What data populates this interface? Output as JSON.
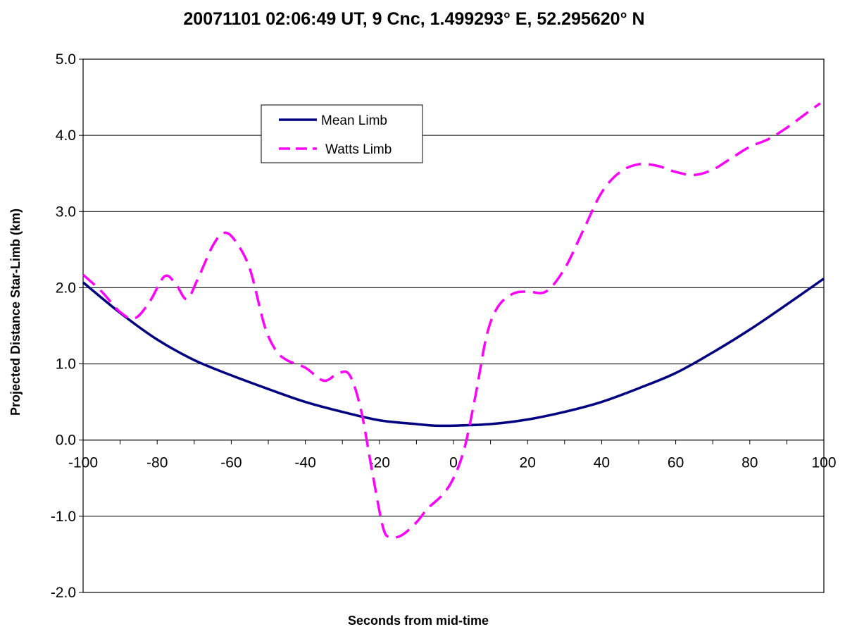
{
  "chart_data": {
    "type": "line",
    "title": "20071101 02:06:49 UT, 9 Cnc, 1.499293° E, 52.295620° N",
    "xlabel": "Seconds from mid-time",
    "ylabel": "Projected Distance Star-Limb (km)",
    "xlim": [
      -100,
      100
    ],
    "ylim": [
      -2.0,
      5.0
    ],
    "x_ticks": [
      -100,
      -80,
      -60,
      -40,
      -20,
      0,
      20,
      40,
      60,
      80,
      100
    ],
    "x_tick_labels": [
      "-100",
      "-80",
      "-60",
      "-40",
      "-20",
      "0",
      "20",
      "40",
      "60",
      "80",
      "100"
    ],
    "y_ticks": [
      -2.0,
      -1.0,
      0.0,
      1.0,
      2.0,
      3.0,
      4.0,
      5.0
    ],
    "y_tick_labels": [
      "-2.0",
      "-1.0",
      "0.0",
      "1.0",
      "2.0",
      "3.0",
      "4.0",
      "5.0"
    ],
    "grid": "horizontal",
    "legend_position": "upper-left",
    "series": [
      {
        "name": "Mean Limb",
        "color": "#000080",
        "style": "solid",
        "x": [
          -100,
          -90,
          -80,
          -70,
          -60,
          -50,
          -40,
          -30,
          -20,
          -10,
          -5,
          0,
          10,
          20,
          30,
          40,
          50,
          60,
          70,
          80,
          90,
          100
        ],
        "y": [
          2.07,
          1.67,
          1.32,
          1.05,
          0.85,
          0.67,
          0.5,
          0.37,
          0.26,
          0.21,
          0.19,
          0.19,
          0.21,
          0.27,
          0.37,
          0.5,
          0.68,
          0.88,
          1.15,
          1.45,
          1.78,
          2.12
        ]
      },
      {
        "name": "Watts Limb",
        "color": "#ff00ff",
        "style": "dashed",
        "x": [
          -100,
          -95,
          -90,
          -86,
          -82,
          -78,
          -75,
          -72,
          -69,
          -65,
          -62,
          -59,
          -55,
          -51,
          -48,
          -45,
          -40,
          -35,
          -31,
          -28,
          -25,
          -22,
          -19,
          -17,
          -14,
          -10,
          -7,
          -3,
          0,
          3,
          6,
          9,
          12,
          16,
          20,
          25,
          30,
          35,
          40,
          45,
          50,
          55,
          60,
          65,
          70,
          75,
          80,
          85,
          90,
          95,
          99
        ],
        "y": [
          2.17,
          1.95,
          1.68,
          1.6,
          1.82,
          2.15,
          2.05,
          1.85,
          2.12,
          2.55,
          2.72,
          2.62,
          2.25,
          1.5,
          1.18,
          1.05,
          0.95,
          0.78,
          0.88,
          0.85,
          0.4,
          -0.4,
          -1.15,
          -1.27,
          -1.25,
          -1.08,
          -0.9,
          -0.72,
          -0.5,
          -0.1,
          0.6,
          1.38,
          1.75,
          1.92,
          1.95,
          1.95,
          2.25,
          2.75,
          3.25,
          3.52,
          3.62,
          3.6,
          3.52,
          3.48,
          3.55,
          3.7,
          3.85,
          3.95,
          4.1,
          4.28,
          4.42
        ]
      }
    ]
  }
}
